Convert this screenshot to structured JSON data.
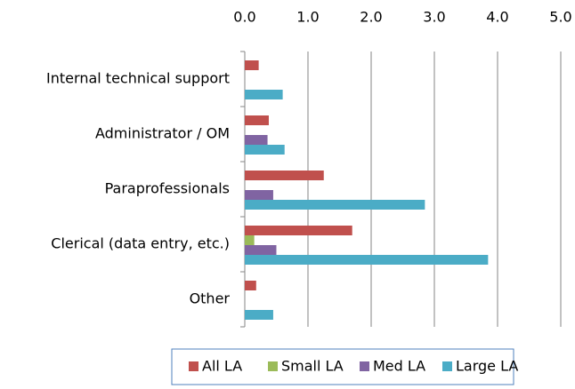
{
  "chart_data": {
    "type": "bar",
    "orientation": "horizontal",
    "categories": [
      "Internal technical support",
      "Administrator / OM",
      "Paraprofessionals",
      "Clerical (data entry, etc.)",
      "Other"
    ],
    "series": [
      {
        "name": "All LA",
        "color": "#c0504d",
        "values": [
          0.22,
          0.38,
          1.25,
          1.7,
          0.18
        ]
      },
      {
        "name": "Small LA",
        "color": "#9bbb59",
        "values": [
          0,
          0,
          0,
          0.15,
          0
        ]
      },
      {
        "name": "Med LA",
        "color": "#8064a2",
        "values": [
          0,
          0.36,
          0.45,
          0.5,
          0
        ]
      },
      {
        "name": "Large LA",
        "color": "#4bacc6",
        "values": [
          0.6,
          0.63,
          2.85,
          3.85,
          0.45
        ]
      }
    ],
    "xlim": [
      0,
      5
    ],
    "xticks": [
      {
        "value": 0,
        "label": "0.0"
      },
      {
        "value": 1,
        "label": "1.0"
      },
      {
        "value": 2,
        "label": "2.0"
      },
      {
        "value": 3,
        "label": "3.0"
      },
      {
        "value": 4,
        "label": "4.0"
      },
      {
        "value": 5,
        "label": "5.0"
      }
    ],
    "grid": true,
    "legend": "bottom"
  }
}
